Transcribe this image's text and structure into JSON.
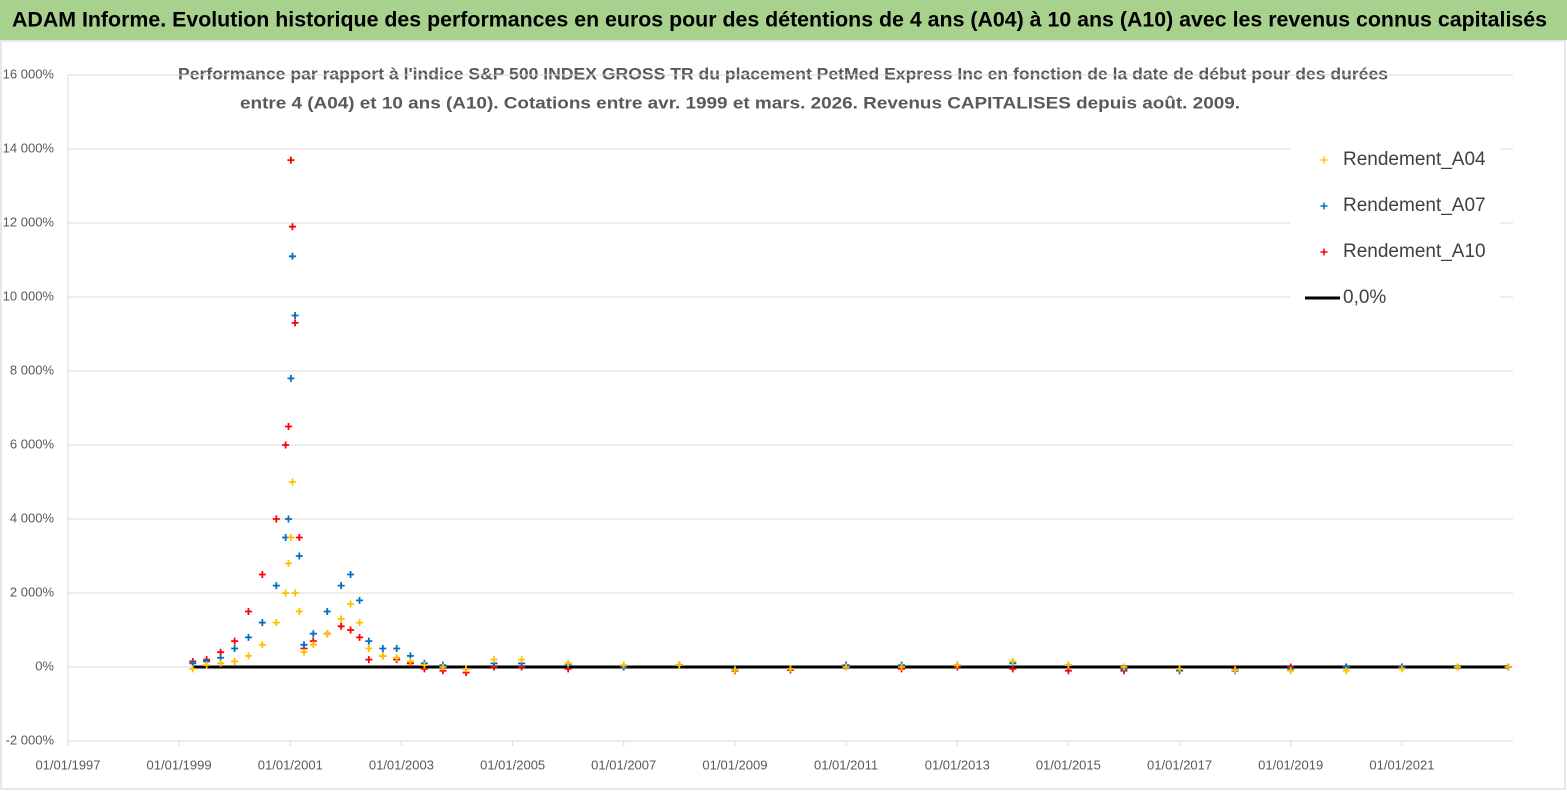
{
  "header": {
    "title": "ADAM Informe. Evolution historique des performances en euros pour des détentions de 4 ans (A04) à 10 ans (A10) avec les revenus connus capitalisés"
  },
  "chart_data": {
    "type": "scatter",
    "title": "Performance par rapport à l'indice S&P 500 INDEX GROSS TR  du placement PetMed Express Inc en fonction de la date de début pour des durées",
    "subtitle": "entre 4 (A04) et 10 ans (A10). Cotations entre avr. 1999 et mars. 2026. Revenus CAPITALISES depuis août. 2009.",
    "x": [
      "1999-04-01",
      "1999-07-01",
      "1999-10-01",
      "2000-01-01",
      "2000-04-01",
      "2000-07-01",
      "2000-10-01",
      "2000-12-01",
      "2000-12-20",
      "2001-01-05",
      "2001-01-15",
      "2001-02-01",
      "2001-03-01",
      "2001-04-01",
      "2001-06-01",
      "2001-09-01",
      "2001-12-01",
      "2002-02-01",
      "2002-04-01",
      "2002-06-01",
      "2002-09-01",
      "2002-12-01",
      "2003-03-01",
      "2003-06-01",
      "2003-10-01",
      "2004-03-01",
      "2004-09-01",
      "2005-03-01",
      "2006-01-01",
      "2007-01-01",
      "2008-01-01",
      "2009-01-01",
      "2010-01-01",
      "2011-01-01",
      "2012-01-01",
      "2013-01-01",
      "2014-01-01",
      "2015-01-01",
      "2016-01-01",
      "2017-01-01",
      "2018-01-01",
      "2019-01-01",
      "2020-01-01",
      "2021-01-01",
      "2022-01-01",
      "2022-12-01"
    ],
    "series": [
      {
        "name": "Rendement_A04",
        "color": "#ffc000",
        "values": [
          -50,
          50,
          100,
          150,
          300,
          600,
          1200,
          2000,
          2800,
          3500,
          5000,
          2000,
          1500,
          400,
          600,
          900,
          1300,
          1700,
          1200,
          500,
          300,
          250,
          150,
          50,
          0,
          -50,
          200,
          200,
          100,
          50,
          50,
          -80,
          -50,
          0,
          0,
          50,
          150,
          50,
          0,
          -50,
          -80,
          -100,
          -100,
          -50,
          0,
          0
        ]
      },
      {
        "name": "Rendement_A07",
        "color": "#0070c0",
        "values": [
          100,
          150,
          250,
          500,
          800,
          1200,
          2200,
          3500,
          4000,
          7800,
          11100,
          9500,
          3000,
          600,
          900,
          1500,
          2200,
          2500,
          1800,
          700,
          500,
          500,
          300,
          100,
          50,
          -50,
          100,
          100,
          50,
          0,
          50,
          -50,
          -50,
          50,
          50,
          50,
          100,
          50,
          -50,
          -100,
          -100,
          -50,
          0,
          0,
          0,
          0
        ]
      },
      {
        "name": "Rendement_A10",
        "color": "#ff0000",
        "values": [
          150,
          200,
          400,
          700,
          1500,
          2500,
          4000,
          6000,
          6500,
          13700,
          11900,
          9300,
          3500,
          500,
          700,
          900,
          1100,
          1000,
          800,
          200,
          300,
          200,
          100,
          -50,
          -100,
          -150,
          0,
          0,
          -50,
          0,
          50,
          -100,
          -80,
          0,
          -50,
          0,
          -50,
          -100,
          -100,
          -50,
          -50,
          0,
          0,
          0,
          0,
          0
        ]
      },
      {
        "name": "0,0%",
        "color": "#000000",
        "type": "line",
        "values": [
          0,
          0,
          0,
          0,
          0,
          0,
          0,
          0,
          0,
          0,
          0,
          0,
          0,
          0,
          0,
          0,
          0,
          0,
          0,
          0,
          0,
          0,
          0,
          0,
          0,
          0,
          0,
          0,
          0,
          0,
          0,
          0,
          0,
          0,
          0,
          0,
          0,
          0,
          0,
          0,
          0,
          0,
          0,
          0,
          0,
          0
        ]
      }
    ],
    "xlim": [
      "1997-01-01",
      "2023-01-01"
    ],
    "xticks": [
      {
        "value": "1997-01-01",
        "label": "01/01/1997"
      },
      {
        "value": "1999-01-01",
        "label": "01/01/1999"
      },
      {
        "value": "2001-01-01",
        "label": "01/01/2001"
      },
      {
        "value": "2003-01-01",
        "label": "01/01/2003"
      },
      {
        "value": "2005-01-01",
        "label": "01/01/2005"
      },
      {
        "value": "2007-01-01",
        "label": "01/01/2007"
      },
      {
        "value": "2009-01-01",
        "label": "01/01/2009"
      },
      {
        "value": "2011-01-01",
        "label": "01/01/2011"
      },
      {
        "value": "2013-01-01",
        "label": "01/01/2013"
      },
      {
        "value": "2015-01-01",
        "label": "01/01/2015"
      },
      {
        "value": "2017-01-01",
        "label": "01/01/2017"
      },
      {
        "value": "2019-01-01",
        "label": "01/01/2019"
      },
      {
        "value": "2021-01-01",
        "label": "01/01/2021"
      }
    ],
    "ylim": [
      -2000,
      16000
    ],
    "yticks": [
      {
        "value": -2000,
        "label": "-2 000%"
      },
      {
        "value": 0,
        "label": "0%"
      },
      {
        "value": 2000,
        "label": "2 000%"
      },
      {
        "value": 4000,
        "label": "4 000%"
      },
      {
        "value": 6000,
        "label": "6 000%"
      },
      {
        "value": 8000,
        "label": "8 000%"
      },
      {
        "value": 10000,
        "label": "10 000%"
      },
      {
        "value": 12000,
        "label": "12 000%"
      },
      {
        "value": 14000,
        "label": "14 000%"
      },
      {
        "value": 16000,
        "label": "16 000%"
      }
    ],
    "grid": true,
    "legend": "upper right"
  }
}
